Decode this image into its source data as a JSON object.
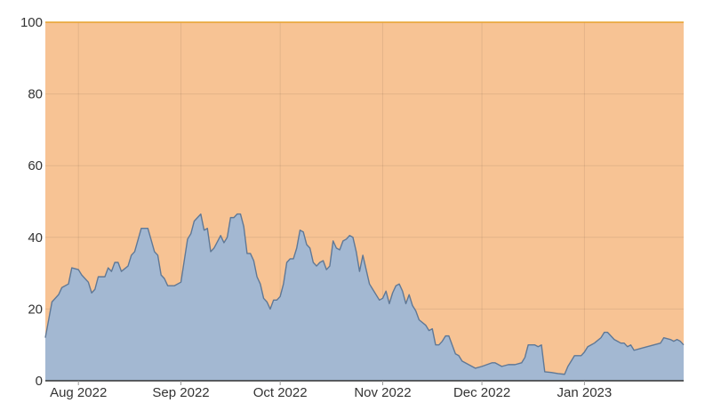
{
  "chart_data": {
    "type": "area",
    "stacked": true,
    "normalized_to": 100,
    "title": "",
    "xlabel": "",
    "ylabel": "",
    "ylim": [
      0,
      100
    ],
    "yticks": [
      0,
      20,
      40,
      60,
      80,
      100
    ],
    "xlim": [
      "2022-07-22",
      "2023-01-31"
    ],
    "xticks": [
      {
        "date": "2022-08-01",
        "label": "Aug 2022"
      },
      {
        "date": "2022-09-01",
        "label": "Sep 2022"
      },
      {
        "date": "2022-10-01",
        "label": "Oct 2022"
      },
      {
        "date": "2022-11-01",
        "label": "Nov 2022"
      },
      {
        "date": "2022-12-01",
        "label": "Dec 2022"
      },
      {
        "date": "2023-01-01",
        "label": "Jan 2023"
      }
    ],
    "grid": true,
    "legend": "none",
    "series": [
      {
        "color": "#a3b8d2",
        "line_color": "#5f7896",
        "points": [
          [
            "2022-07-22",
            12
          ],
          [
            "2022-07-24",
            22
          ],
          [
            "2022-07-26",
            24
          ],
          [
            "2022-07-27",
            26
          ],
          [
            "2022-07-29",
            27
          ],
          [
            "2022-07-30",
            31.5
          ],
          [
            "2022-08-01",
            31
          ],
          [
            "2022-08-02",
            29.5
          ],
          [
            "2022-08-04",
            27.5
          ],
          [
            "2022-08-05",
            24.5
          ],
          [
            "2022-08-06",
            25.5
          ],
          [
            "2022-08-07",
            29
          ],
          [
            "2022-08-09",
            29
          ],
          [
            "2022-08-10",
            31.5
          ],
          [
            "2022-08-11",
            30.5
          ],
          [
            "2022-08-12",
            33
          ],
          [
            "2022-08-13",
            33
          ],
          [
            "2022-08-14",
            30.5
          ],
          [
            "2022-08-16",
            32
          ],
          [
            "2022-08-17",
            35
          ],
          [
            "2022-08-18",
            36
          ],
          [
            "2022-08-20",
            42.5
          ],
          [
            "2022-08-22",
            42.5
          ],
          [
            "2022-08-24",
            36
          ],
          [
            "2022-08-25",
            35
          ],
          [
            "2022-08-26",
            29.5
          ],
          [
            "2022-08-27",
            28.5
          ],
          [
            "2022-08-28",
            26.5
          ],
          [
            "2022-08-30",
            26.5
          ],
          [
            "2022-09-01",
            27.5
          ],
          [
            "2022-09-03",
            39.5
          ],
          [
            "2022-09-04",
            41
          ],
          [
            "2022-09-05",
            44.5
          ],
          [
            "2022-09-07",
            46.5
          ],
          [
            "2022-09-08",
            42
          ],
          [
            "2022-09-09",
            42.5
          ],
          [
            "2022-09-10",
            36
          ],
          [
            "2022-09-11",
            37
          ],
          [
            "2022-09-13",
            40.5
          ],
          [
            "2022-09-14",
            38.5
          ],
          [
            "2022-09-15",
            40
          ],
          [
            "2022-09-16",
            45.5
          ],
          [
            "2022-09-17",
            45.5
          ],
          [
            "2022-09-18",
            46.5
          ],
          [
            "2022-09-19",
            46.5
          ],
          [
            "2022-09-20",
            43
          ],
          [
            "2022-09-21",
            35.5
          ],
          [
            "2022-09-22",
            35.5
          ],
          [
            "2022-09-23",
            33.5
          ],
          [
            "2022-09-24",
            29
          ],
          [
            "2022-09-25",
            27
          ],
          [
            "2022-09-26",
            23
          ],
          [
            "2022-09-27",
            22
          ],
          [
            "2022-09-28",
            20
          ],
          [
            "2022-09-29",
            22.5
          ],
          [
            "2022-09-30",
            22.5
          ],
          [
            "2022-10-01",
            23.5
          ],
          [
            "2022-10-02",
            27
          ],
          [
            "2022-10-03",
            33
          ],
          [
            "2022-10-04",
            34
          ],
          [
            "2022-10-05",
            34
          ],
          [
            "2022-10-06",
            37
          ],
          [
            "2022-10-07",
            42
          ],
          [
            "2022-10-08",
            41.5
          ],
          [
            "2022-10-09",
            38
          ],
          [
            "2022-10-10",
            37
          ],
          [
            "2022-10-11",
            33
          ],
          [
            "2022-10-12",
            32
          ],
          [
            "2022-10-13",
            33
          ],
          [
            "2022-10-14",
            33.5
          ],
          [
            "2022-10-15",
            31
          ],
          [
            "2022-10-16",
            32
          ],
          [
            "2022-10-17",
            39
          ],
          [
            "2022-10-18",
            37
          ],
          [
            "2022-10-19",
            36.5
          ],
          [
            "2022-10-20",
            39
          ],
          [
            "2022-10-21",
            39.5
          ],
          [
            "2022-10-22",
            40.5
          ],
          [
            "2022-10-23",
            40
          ],
          [
            "2022-10-24",
            36
          ],
          [
            "2022-10-25",
            30.5
          ],
          [
            "2022-10-26",
            35
          ],
          [
            "2022-10-27",
            31
          ],
          [
            "2022-10-28",
            27
          ],
          [
            "2022-10-29",
            25.5
          ],
          [
            "2022-10-31",
            22.5
          ],
          [
            "2022-11-01",
            23
          ],
          [
            "2022-11-02",
            25
          ],
          [
            "2022-11-03",
            21.5
          ],
          [
            "2022-11-04",
            24.5
          ],
          [
            "2022-11-05",
            26.5
          ],
          [
            "2022-11-06",
            27
          ],
          [
            "2022-11-07",
            25
          ],
          [
            "2022-11-08",
            21.5
          ],
          [
            "2022-11-09",
            24
          ],
          [
            "2022-11-10",
            21
          ],
          [
            "2022-11-11",
            19.5
          ],
          [
            "2022-11-12",
            17
          ],
          [
            "2022-11-14",
            15.5
          ],
          [
            "2022-11-15",
            14
          ],
          [
            "2022-11-16",
            14.5
          ],
          [
            "2022-11-17",
            10
          ],
          [
            "2022-11-18",
            10
          ],
          [
            "2022-11-19",
            11
          ],
          [
            "2022-11-20",
            12.5
          ],
          [
            "2022-11-21",
            12.5
          ],
          [
            "2022-11-22",
            10
          ],
          [
            "2022-11-23",
            7.5
          ],
          [
            "2022-11-24",
            7
          ],
          [
            "2022-11-25",
            5.5
          ],
          [
            "2022-11-27",
            4.5
          ],
          [
            "2022-11-29",
            3.5
          ],
          [
            "2022-12-01",
            4
          ],
          [
            "2022-12-04",
            5
          ],
          [
            "2022-12-05",
            5
          ],
          [
            "2022-12-06",
            4.5
          ],
          [
            "2022-12-07",
            4
          ],
          [
            "2022-12-09",
            4.5
          ],
          [
            "2022-12-11",
            4.5
          ],
          [
            "2022-12-13",
            5
          ],
          [
            "2022-12-14",
            6.5
          ],
          [
            "2022-12-15",
            10
          ],
          [
            "2022-12-17",
            10
          ],
          [
            "2022-12-18",
            9.5
          ],
          [
            "2022-12-19",
            10
          ],
          [
            "2022-12-20",
            2.5
          ],
          [
            "2022-12-22",
            2.3
          ],
          [
            "2022-12-24",
            2
          ],
          [
            "2022-12-26",
            1.8
          ],
          [
            "2022-12-27",
            4
          ],
          [
            "2022-12-28",
            5.5
          ],
          [
            "2022-12-29",
            7
          ],
          [
            "2022-12-31",
            7
          ],
          [
            "2023-01-01",
            8
          ],
          [
            "2023-01-02",
            9.5
          ],
          [
            "2023-01-03",
            10
          ],
          [
            "2023-01-04",
            10.5
          ],
          [
            "2023-01-06",
            12
          ],
          [
            "2023-01-07",
            13.5
          ],
          [
            "2023-01-08",
            13.5
          ],
          [
            "2023-01-09",
            12.5
          ],
          [
            "2023-01-10",
            11.5
          ],
          [
            "2023-01-11",
            11
          ],
          [
            "2023-01-12",
            10.5
          ],
          [
            "2023-01-13",
            10.5
          ],
          [
            "2023-01-14",
            9.5
          ],
          [
            "2023-01-15",
            10
          ],
          [
            "2023-01-16",
            8.5
          ],
          [
            "2023-01-18",
            9
          ],
          [
            "2023-01-20",
            9.5
          ],
          [
            "2023-01-22",
            10
          ],
          [
            "2023-01-24",
            10.5
          ],
          [
            "2023-01-25",
            12
          ],
          [
            "2023-01-27",
            11.5
          ],
          [
            "2023-01-28",
            11
          ],
          [
            "2023-01-29",
            11.5
          ],
          [
            "2023-01-30",
            11
          ],
          [
            "2023-01-31",
            10
          ]
        ]
      },
      {
        "color": "#f7c394",
        "line_color": "#e7a22c",
        "points": [
          [
            "2022-07-22",
            100
          ],
          [
            "2023-01-31",
            100
          ]
        ]
      }
    ]
  }
}
